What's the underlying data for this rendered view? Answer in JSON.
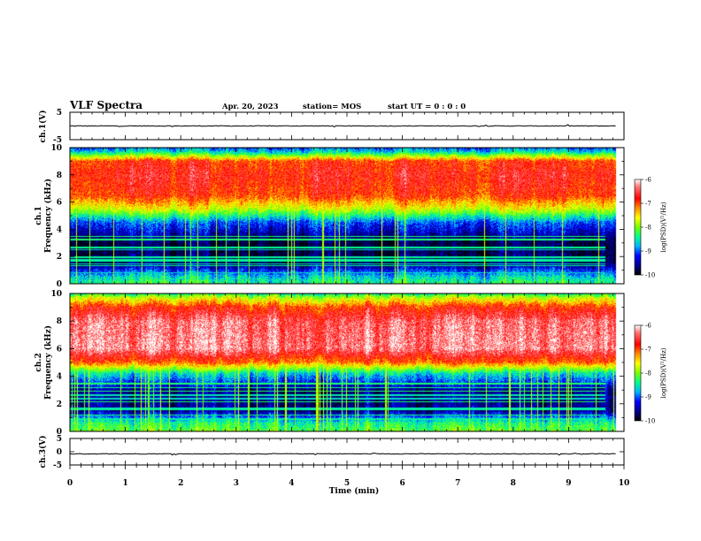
{
  "header": {
    "title": "VLF Spectra",
    "date": "Apr. 20, 2023",
    "station": "station= MOS",
    "start_ut": "start  UT =   0 : 0  : 0"
  },
  "chart_data": [
    {
      "type": "line",
      "id": "ch1-waveform",
      "ylabel": "ch.1(V)",
      "ylim": [
        -5,
        5
      ],
      "yticks": [
        "5",
        "-5"
      ],
      "x_range_min": [
        0,
        9.85
      ],
      "baseline_value": 0,
      "color": "#000000"
    },
    {
      "type": "heatmap",
      "id": "ch1-spectrogram",
      "ylabel": "ch.1\nFrequency (kHz)",
      "xlim": [
        0,
        10
      ],
      "ylim": [
        0,
        10
      ],
      "yticks": [
        "0",
        "2",
        "4",
        "6",
        "8",
        "10"
      ],
      "data_x_extent": [
        0,
        9.85
      ],
      "colorbar": {
        "label": "log(PSD)(V²/Hz)",
        "range": [
          -10,
          -6
        ],
        "ticks": [
          "-6",
          "-7",
          "-8",
          "-9",
          "-10"
        ]
      },
      "band_profile_log_psd": [
        {
          "freq_khz": 0.0,
          "value": -8.3
        },
        {
          "freq_khz": 0.5,
          "value": -8.6
        },
        {
          "freq_khz": 1.5,
          "value": -9.7
        },
        {
          "freq_khz": 3.0,
          "value": -9.8
        },
        {
          "freq_khz": 4.5,
          "value": -9.0
        },
        {
          "freq_khz": 5.5,
          "value": -7.7
        },
        {
          "freq_khz": 6.5,
          "value": -6.9
        },
        {
          "freq_khz": 8.0,
          "value": -6.7
        },
        {
          "freq_khz": 9.0,
          "value": -6.9
        },
        {
          "freq_khz": 9.4,
          "value": -7.9
        },
        {
          "freq_khz": 9.7,
          "value": -8.6
        },
        {
          "freq_khz": 10.0,
          "value": -9.0
        }
      ]
    },
    {
      "type": "heatmap",
      "id": "ch2-spectrogram",
      "ylabel": "ch.2\nFrequency (kHz)",
      "xlim": [
        0,
        10
      ],
      "ylim": [
        0,
        10
      ],
      "yticks": [
        "0",
        "2",
        "4",
        "6",
        "8",
        "10"
      ],
      "data_x_extent": [
        0,
        9.85
      ],
      "colorbar": {
        "label": "log(PSD)(V²/Hz)",
        "range": [
          -10,
          -6
        ],
        "ticks": [
          "-6",
          "-7",
          "-8",
          "-9",
          "-10"
        ]
      },
      "band_profile_log_psd": [
        {
          "freq_khz": 0.0,
          "value": -8.1
        },
        {
          "freq_khz": 0.6,
          "value": -8.4
        },
        {
          "freq_khz": 1.5,
          "value": -9.6
        },
        {
          "freq_khz": 3.0,
          "value": -9.6
        },
        {
          "freq_khz": 4.2,
          "value": -8.6
        },
        {
          "freq_khz": 5.0,
          "value": -7.1
        },
        {
          "freq_khz": 6.0,
          "value": -6.3
        },
        {
          "freq_khz": 8.0,
          "value": -6.4
        },
        {
          "freq_khz": 9.0,
          "value": -6.9
        },
        {
          "freq_khz": 9.7,
          "value": -7.8
        },
        {
          "freq_khz": 10.0,
          "value": -8.4
        }
      ]
    },
    {
      "type": "line",
      "id": "ch3-waveform",
      "ylabel": "ch.3(V)",
      "ylim": [
        -5,
        5
      ],
      "yticks": [
        "5",
        "0",
        "-5"
      ],
      "x_range_min": [
        0,
        9.85
      ],
      "baseline_value": -0.8,
      "color": "#000000"
    }
  ],
  "x_axis": {
    "label": "Time (min)",
    "ticks": [
      "0",
      "1",
      "2",
      "3",
      "4",
      "5",
      "6",
      "7",
      "8",
      "9",
      "10"
    ],
    "range": [
      0,
      10
    ]
  },
  "colors": {
    "background": "#ffffff",
    "axes": "#000000",
    "colormap": [
      "#000000",
      "#00008b",
      "#0000ff",
      "#00bfff",
      "#00ff7f",
      "#7fff00",
      "#ffff00",
      "#ff8000",
      "#ff0000",
      "#ffffff"
    ]
  }
}
